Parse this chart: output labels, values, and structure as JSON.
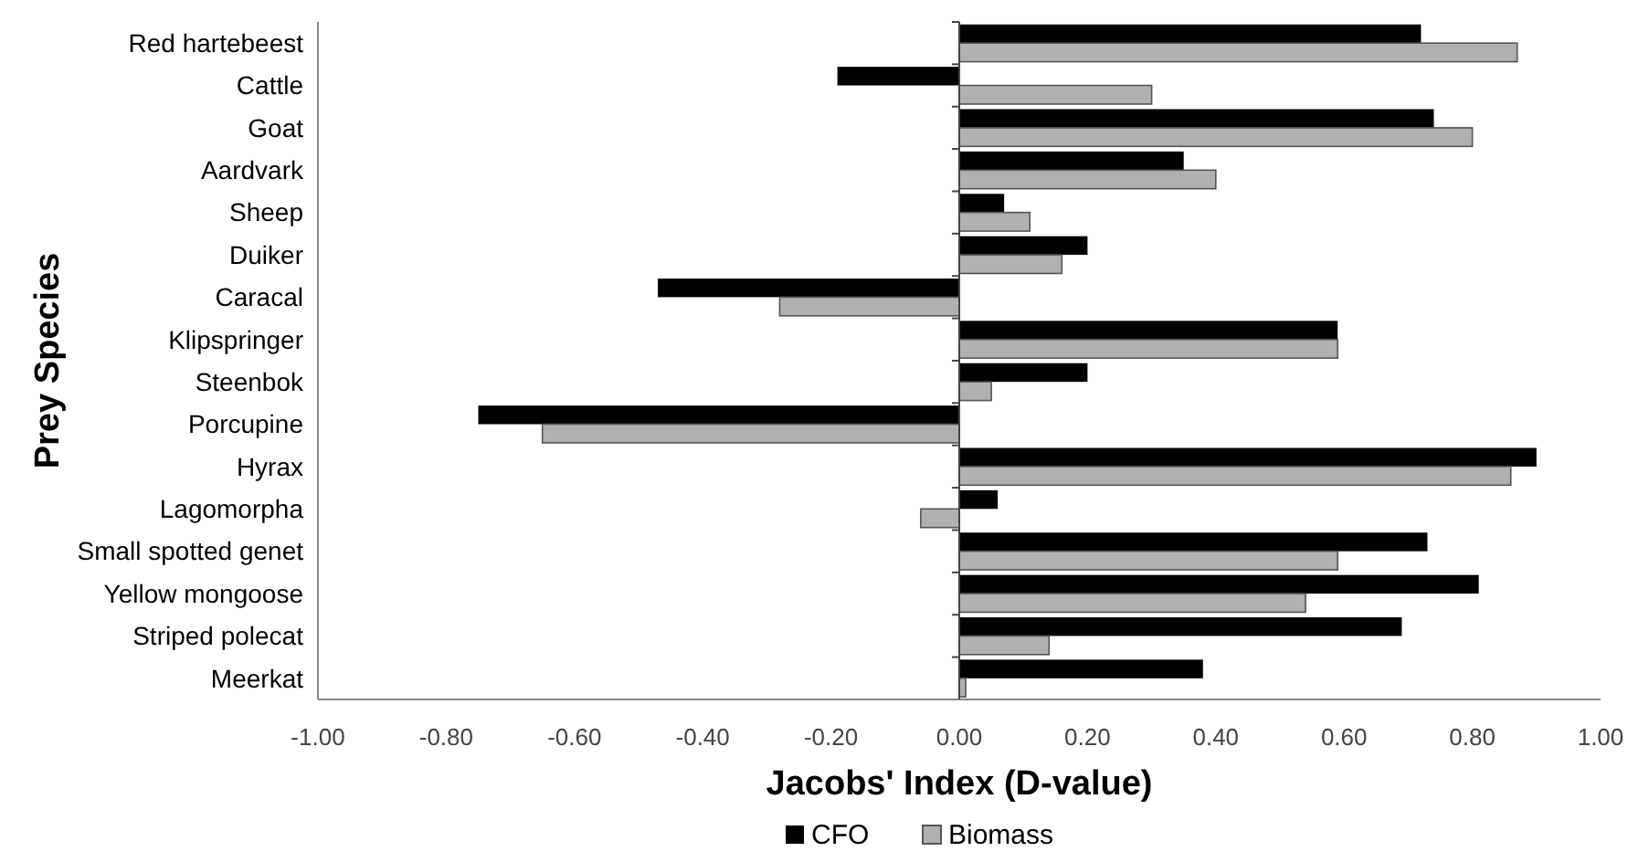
{
  "chart_data": {
    "type": "bar",
    "orientation": "horizontal",
    "xlabel": "Jacobs' Index (D-value)",
    "ylabel": "Prey Species",
    "categories": [
      "Red hartebeest",
      "Cattle",
      "Goat",
      "Aardvark",
      "Sheep",
      "Duiker",
      "Caracal",
      "Klipspringer",
      "Steenbok",
      "Porcupine",
      "Hyrax",
      "Lagomorpha",
      "Small spotted genet",
      "Yellow mongoose",
      "Striped polecat",
      "Meerkat"
    ],
    "series": [
      {
        "name": "CFO",
        "color": "#000000",
        "values": [
          0.72,
          -0.19,
          0.74,
          0.35,
          0.07,
          0.2,
          -0.47,
          0.59,
          0.2,
          -0.75,
          0.9,
          0.06,
          0.73,
          0.81,
          0.69,
          0.38
        ]
      },
      {
        "name": "Biomass",
        "color": "#b0b0b0",
        "values": [
          0.87,
          0.3,
          0.8,
          0.4,
          0.11,
          0.16,
          -0.28,
          0.59,
          0.05,
          -0.65,
          0.86,
          -0.06,
          0.59,
          0.54,
          0.14,
          0.01
        ]
      }
    ],
    "xlim": [
      -1,
      1
    ],
    "xticks": [
      {
        "value": -1,
        "label": "-1.00"
      },
      {
        "value": -0.8,
        "label": "-0.80"
      },
      {
        "value": -0.6,
        "label": "-0.60"
      },
      {
        "value": -0.4,
        "label": "-0.40"
      },
      {
        "value": -0.2,
        "label": "-0.20"
      },
      {
        "value": 0,
        "label": "0.00"
      },
      {
        "value": 0.2,
        "label": "0.20"
      },
      {
        "value": 0.4,
        "label": "0.40"
      },
      {
        "value": 0.6,
        "label": "0.60"
      },
      {
        "value": 0.8,
        "label": "0.80"
      },
      {
        "value": 1,
        "label": "1.00"
      }
    ],
    "legend": "bottom"
  }
}
